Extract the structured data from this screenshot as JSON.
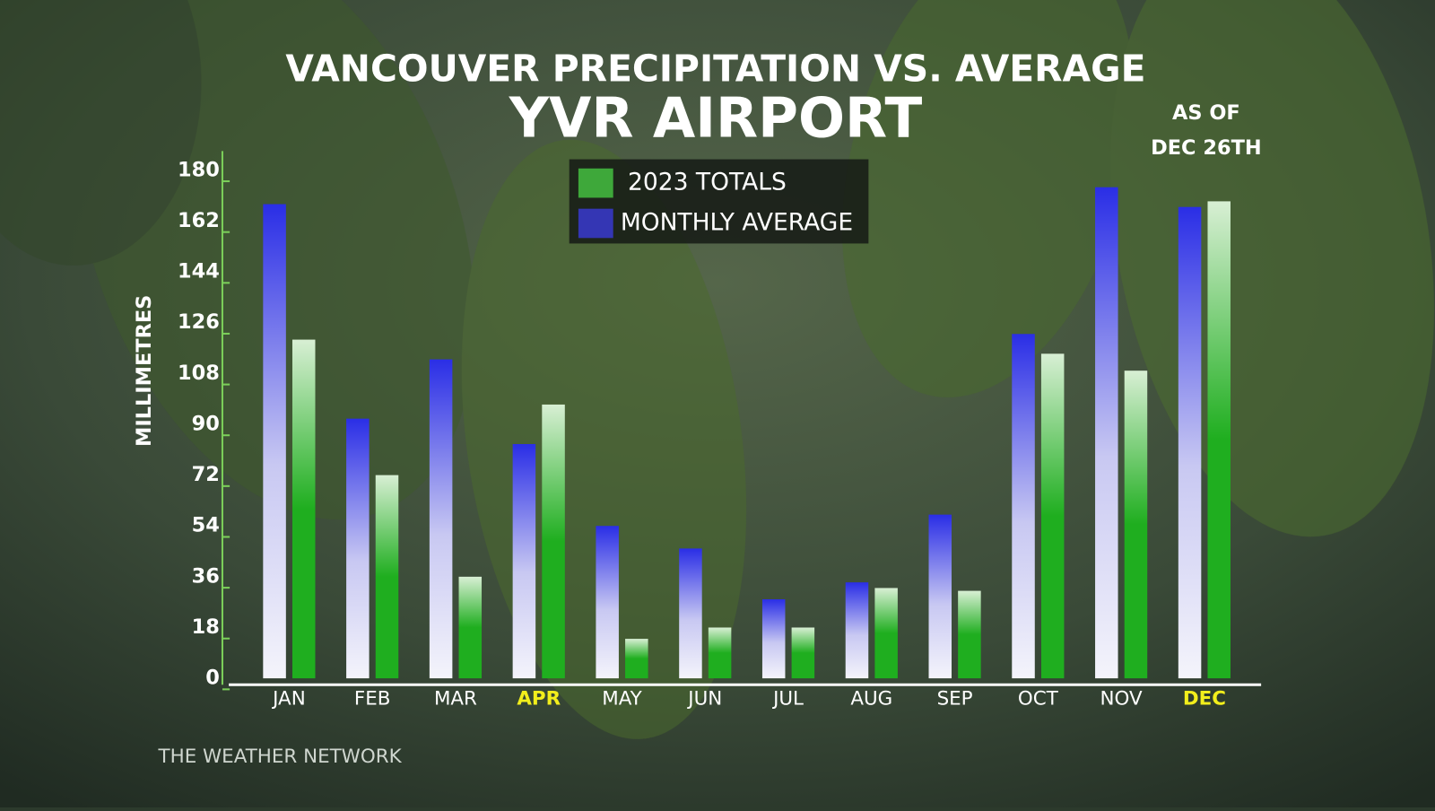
{
  "chart_data": {
    "type": "bar",
    "title": "VANCOUVER PRECIPITATION VS. AVERAGE",
    "subtitle": "YVR AIRPORT",
    "annotation": [
      "AS OF",
      "DEC 26TH"
    ],
    "y_label": "MILLIMETRES",
    "source": "THE WEATHER NETWORK",
    "categories": [
      "JAN",
      "FEB",
      "MAR",
      "APR",
      "MAY",
      "JUN",
      "JUL",
      "AUG",
      "SEP",
      "OCT",
      "NOV",
      "DEC"
    ],
    "highlight": [
      3,
      11
    ],
    "highlight_color": "#f2ee1c",
    "series": [
      {
        "name": "MONTHLY AVERAGE",
        "color": "#2a2ee6",
        "legend_color": "#3436b4",
        "values": [
          168,
          92,
          113,
          83,
          54,
          46,
          28,
          34,
          58,
          122,
          174,
          167
        ]
      },
      {
        "name": "2023 TOTALS",
        "color": "#1fae1f",
        "legend_color": "#3ea83a",
        "values": [
          120,
          72,
          36,
          97,
          14,
          18,
          18,
          32,
          31,
          115,
          109,
          169
        ]
      }
    ],
    "legend_order": [
      1,
      0
    ],
    "ylim": [
      0,
      180
    ],
    "yticks": [
      0,
      18,
      36,
      54,
      72,
      90,
      108,
      126,
      144,
      162,
      180
    ],
    "grid": false
  }
}
